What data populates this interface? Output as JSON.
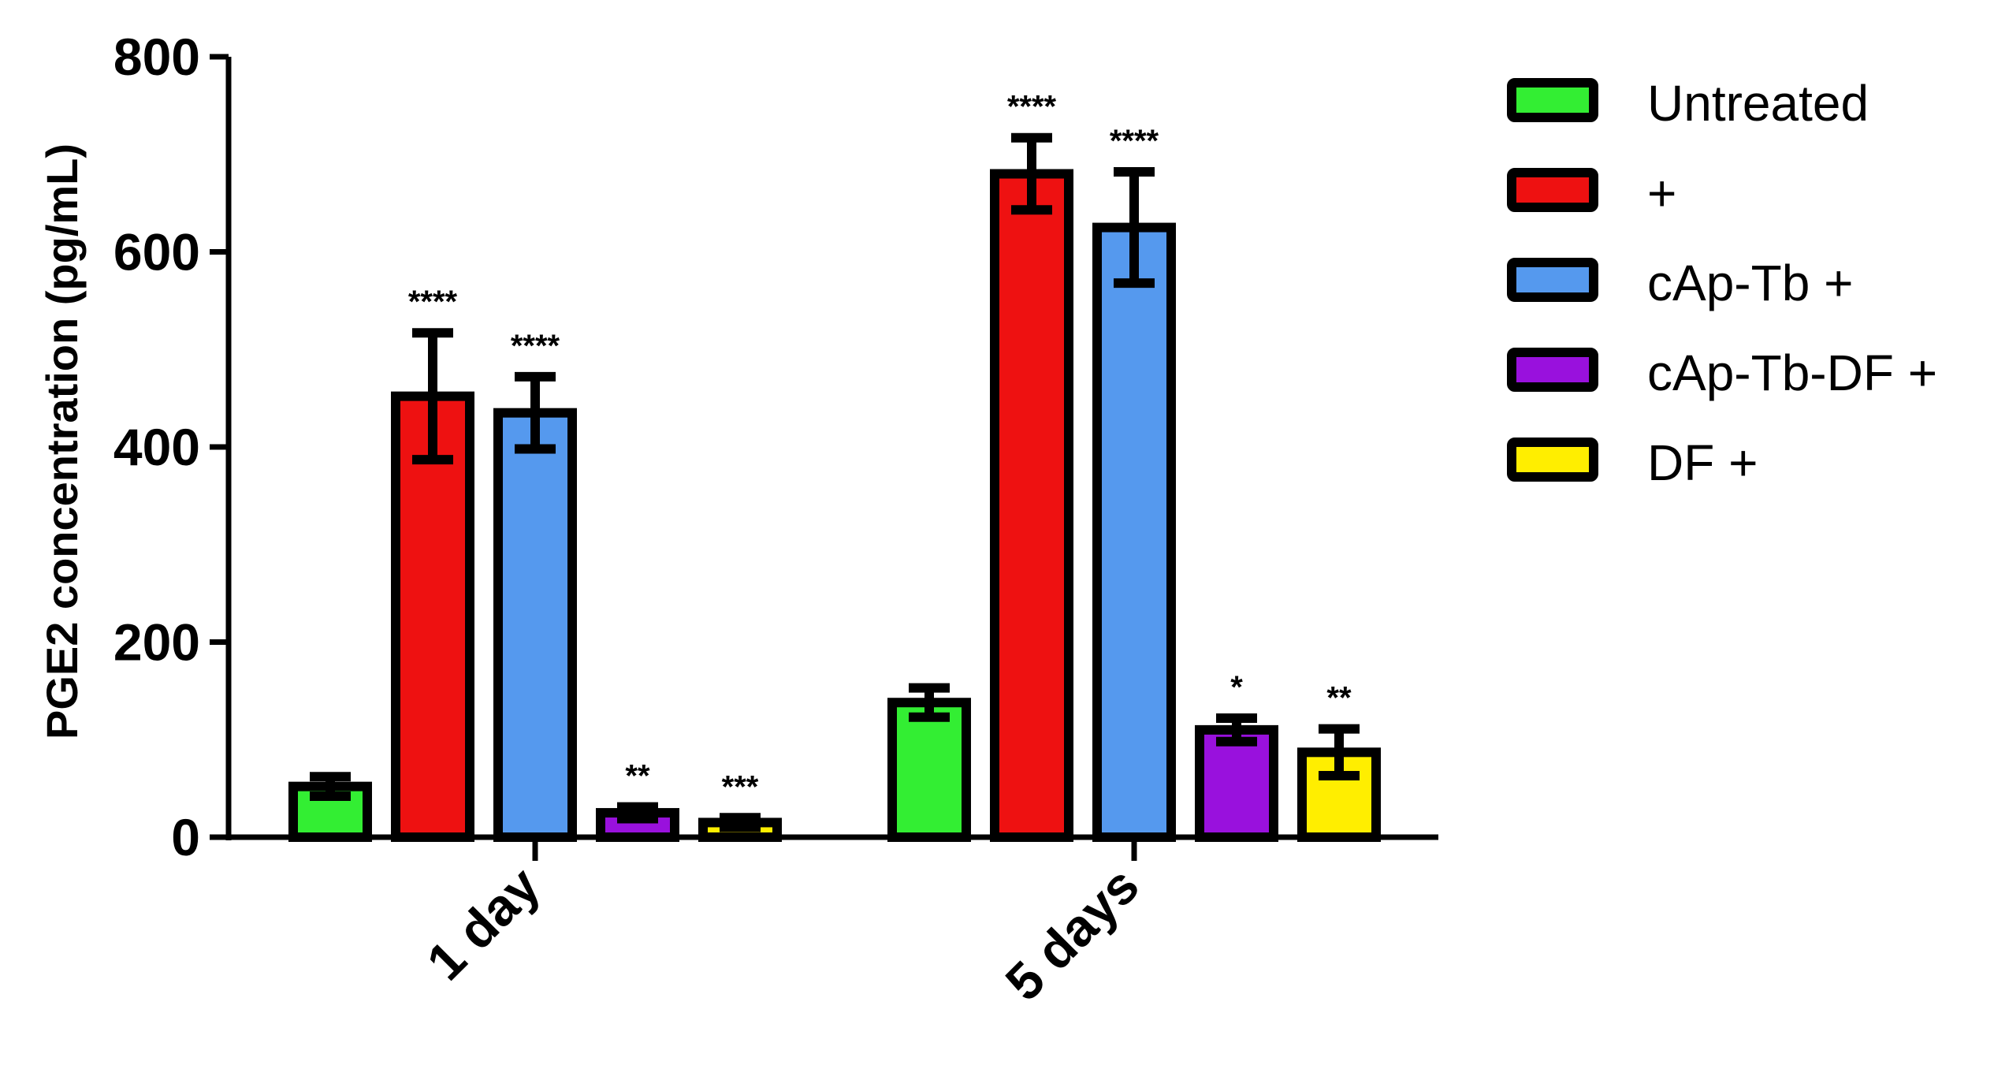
{
  "chart_data": {
    "type": "bar",
    "title": "",
    "xlabel": "",
    "ylabel": "PGE2 concentration (pg/mL)",
    "ylim": [
      0,
      800
    ],
    "yticks": [
      0,
      200,
      400,
      600,
      800
    ],
    "categories": [
      "1 day",
      "5 days"
    ],
    "legend_position": "right",
    "grid": false,
    "series": [
      {
        "name": "Untreated",
        "color": "#33ee33",
        "values": [
          52,
          138
        ],
        "errors": [
          10,
          15
        ],
        "significance": [
          "",
          ""
        ]
      },
      {
        "name": "+",
        "color": "#ee1111",
        "values": [
          452,
          680
        ],
        "errors": [
          65,
          37
        ],
        "significance": [
          "****",
          "****"
        ]
      },
      {
        "name": "cAp-Tb +",
        "color": "#5599ee",
        "values": [
          435,
          625
        ],
        "errors": [
          37,
          57
        ],
        "significance": [
          "****",
          "****"
        ]
      },
      {
        "name": "cAp-Tb-DF +",
        "color": "#9911dd",
        "values": [
          25,
          110
        ],
        "errors": [
          6,
          12
        ],
        "significance": [
          "**",
          "*"
        ]
      },
      {
        "name": "DF +",
        "color": "#ffee00",
        "values": [
          15,
          87
        ],
        "errors": [
          5,
          24
        ],
        "significance": [
          "***",
          "**"
        ]
      }
    ]
  }
}
